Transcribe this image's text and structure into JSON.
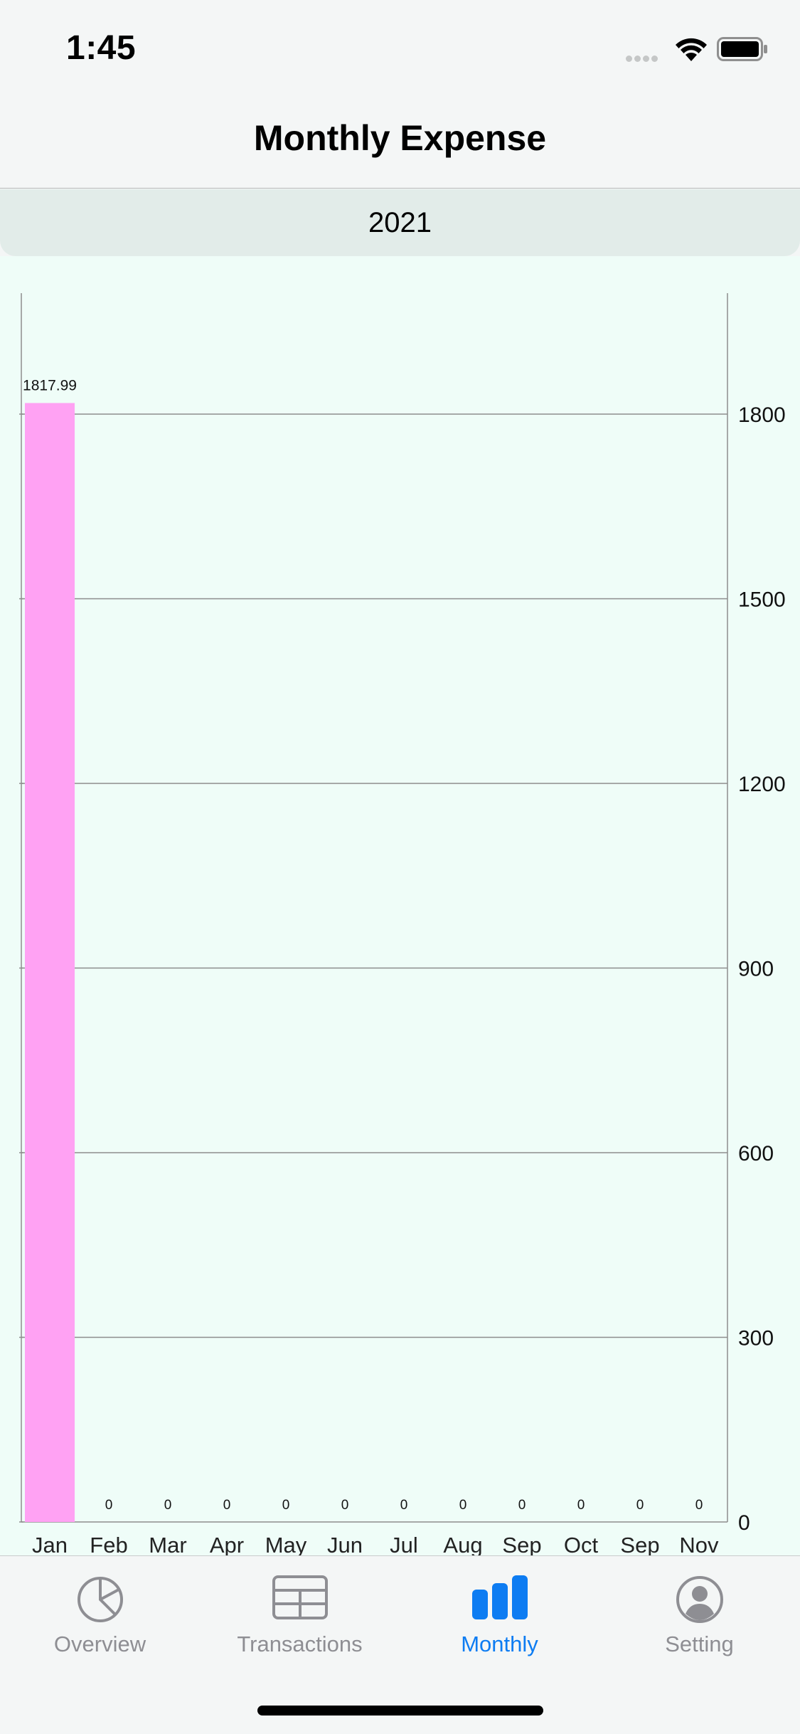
{
  "status_bar": {
    "time": "1:45"
  },
  "nav": {
    "title": "Monthly Expense"
  },
  "year_selector": {
    "year": "2021"
  },
  "colors": {
    "bar": "#ffa2f3",
    "grid": "#8d8d8d",
    "accent": "#0d7cf2",
    "inactive": "#8e8e93",
    "chart_bg": "#effdf8"
  },
  "chart_data": {
    "type": "bar",
    "categories": [
      "Jan",
      "Feb",
      "Mar",
      "Apr",
      "May",
      "Jun",
      "Jul",
      "Aug",
      "Sep",
      "Oct",
      "Sep",
      "Nov"
    ],
    "values": [
      1817.99,
      0,
      0,
      0,
      0,
      0,
      0,
      0,
      0,
      0,
      0,
      0
    ],
    "value_labels": [
      "1817.99",
      "0",
      "0",
      "0",
      "0",
      "0",
      "0",
      "0",
      "0",
      "0",
      "0",
      "0"
    ],
    "yticks": [
      0,
      300,
      600,
      900,
      1200,
      1500,
      1800
    ],
    "ylim": [
      0,
      2000
    ],
    "y_axis_side": "right",
    "grid": true
  },
  "tabs": [
    {
      "label": "Overview",
      "icon": "pie-chart-icon",
      "active": false
    },
    {
      "label": "Transactions",
      "icon": "table-icon",
      "active": false
    },
    {
      "label": "Monthly",
      "icon": "bar-chart-icon",
      "active": true
    },
    {
      "label": "Setting",
      "icon": "person-circle-icon",
      "active": false
    }
  ]
}
